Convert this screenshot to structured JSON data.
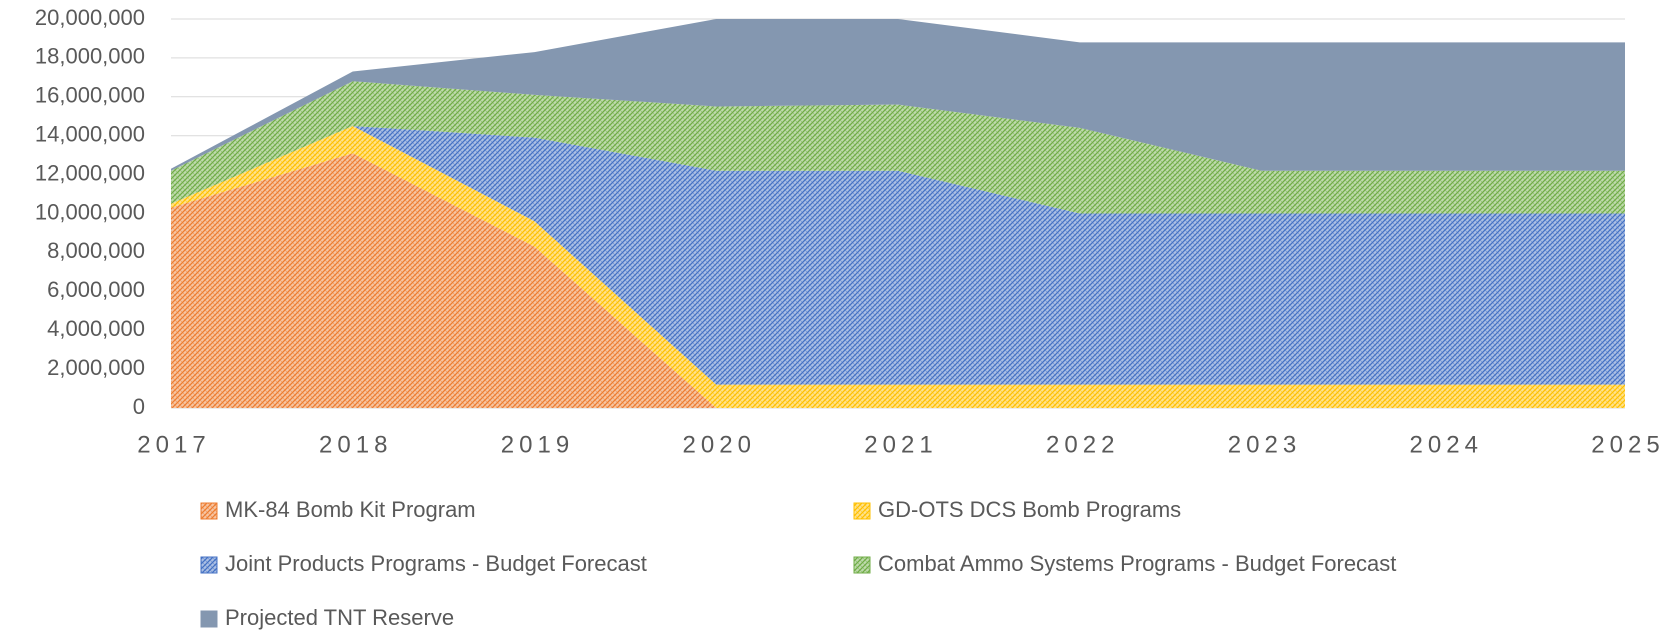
{
  "chart_data": {
    "type": "stacked_area",
    "categories": [
      "2017",
      "2018",
      "2019",
      "2020",
      "2021",
      "2022",
      "2023",
      "2024",
      "2025"
    ],
    "series": [
      {
        "name": "MK-84 Bomb Kit Program",
        "color": "#ed7d31",
        "hatched": true,
        "values": [
          10300000,
          13100000,
          8300000,
          0,
          0,
          0,
          0,
          0,
          0
        ]
      },
      {
        "name": "GD-OTS DCS Bomb Programs",
        "color": "#ffc000",
        "hatched": true,
        "values": [
          200000,
          1400000,
          1300000,
          1200000,
          1200000,
          1200000,
          1200000,
          1200000,
          1200000
        ]
      },
      {
        "name": "Joint Products Programs - Budget Forecast",
        "color": "#4472c4",
        "hatched": true,
        "values": [
          0,
          0,
          4300000,
          11000000,
          11000000,
          8800000,
          8800000,
          8800000,
          8800000
        ]
      },
      {
        "name": "Combat Ammo Systems Programs - Budget Forecast",
        "color": "#70ad47",
        "hatched": true,
        "values": [
          1700000,
          2300000,
          2200000,
          3300000,
          3400000,
          4400000,
          2200000,
          2200000,
          2200000
        ]
      },
      {
        "name": "Projected TNT Reserve",
        "color": "#8497b0",
        "hatched": false,
        "values": [
          100000,
          500000,
          2200000,
          4500000,
          4400000,
          4400000,
          6600000,
          6600000,
          6600000
        ]
      }
    ],
    "ylim": [
      0,
      20000000
    ],
    "yticks": [
      0,
      {
        "value": 2000000,
        "label": "2,000,000"
      },
      {
        "value": 4000000,
        "label": "4,000,000"
      },
      {
        "value": 6000000,
        "label": "6,000,000"
      },
      {
        "value": 8000000,
        "label": "8,000,000"
      },
      {
        "value": 10000000,
        "label": "10,000,000"
      },
      {
        "value": 12000000,
        "label": "12,000,000"
      },
      {
        "value": 14000000,
        "label": "14,000,000"
      },
      {
        "value": 16000000,
        "label": "16,000,000"
      },
      {
        "value": 18000000,
        "label": "18,000,000"
      },
      {
        "value": 20000000,
        "label": "20,000,000"
      }
    ],
    "grid": true,
    "legend": "bottom"
  }
}
